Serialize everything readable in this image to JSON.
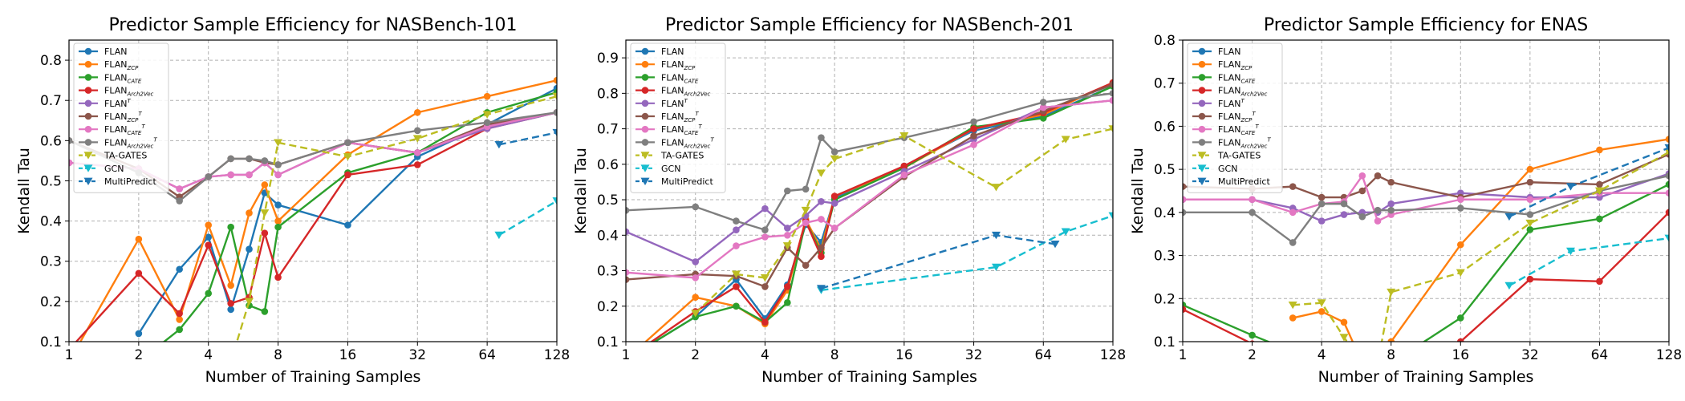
{
  "colors": {
    "FLAN": "#1f77b4",
    "FLAN_ZCP": "#ff7f0e",
    "FLAN_CATE": "#2ca02c",
    "FLAN_Arch2Vec": "#d62728",
    "FLAN_T": "#9467bd",
    "FLAN_ZCP_T": "#8c564b",
    "FLAN_CATE_T": "#e377c2",
    "FLAN_Arch2Vec_T": "#7f7f7f",
    "TA-GATES": "#bcbd22",
    "GCN": "#17becf",
    "MultiPredict": "#1f77b4"
  },
  "legend": [
    {
      "key": "FLAN",
      "base": "FLAN",
      "sub": "",
      "sup": "",
      "marker": "circle",
      "dash": false
    },
    {
      "key": "FLAN_ZCP",
      "base": "FLAN",
      "sub": "ZCP",
      "sup": "",
      "marker": "circle",
      "dash": false
    },
    {
      "key": "FLAN_CATE",
      "base": "FLAN",
      "sub": "CATE",
      "sup": "",
      "marker": "circle",
      "dash": false
    },
    {
      "key": "FLAN_Arch2Vec",
      "base": "FLAN",
      "sub": "Arch2Vec",
      "sup": "",
      "marker": "circle",
      "dash": false
    },
    {
      "key": "FLAN_T",
      "base": "FLAN",
      "sub": "",
      "sup": "T",
      "marker": "circle",
      "dash": false
    },
    {
      "key": "FLAN_ZCP_T",
      "base": "FLAN",
      "sub": "ZCP",
      "sup": "T",
      "marker": "circle",
      "dash": false
    },
    {
      "key": "FLAN_CATE_T",
      "base": "FLAN",
      "sub": "CATE",
      "sup": "T",
      "marker": "circle",
      "dash": false
    },
    {
      "key": "FLAN_Arch2Vec_T",
      "base": "FLAN",
      "sub": "Arch2Vec",
      "sup": "T",
      "marker": "circle",
      "dash": false
    },
    {
      "key": "TA-GATES",
      "base": "TA-GATES",
      "sub": "",
      "sup": "",
      "marker": "triangle-down",
      "dash": true
    },
    {
      "key": "GCN",
      "base": "GCN",
      "sub": "",
      "sup": "",
      "marker": "triangle-down",
      "dash": true
    },
    {
      "key": "MultiPredict",
      "base": "MultiPredict",
      "sub": "",
      "sup": "",
      "marker": "triangle-down",
      "dash": true
    }
  ],
  "chart_data": [
    {
      "type": "line",
      "title": "Predictor Sample Efficiency for NASBench-101",
      "xlabel": "Number of Training Samples",
      "ylabel": "Kendall Tau",
      "xscale": "log2",
      "xlim": [
        1,
        128
      ],
      "ylim": [
        0.1,
        0.85
      ],
      "xticks": [
        1,
        2,
        4,
        8,
        16,
        32,
        64,
        128
      ],
      "yticks": [
        0.1,
        0.2,
        0.3,
        0.4,
        0.5,
        0.6,
        0.7,
        0.8
      ],
      "grid": true,
      "legend_position": "upper-left",
      "series": [
        {
          "key": "FLAN",
          "x": [
            2,
            3,
            4,
            5,
            6,
            7,
            8,
            16,
            32,
            64,
            128
          ],
          "y": [
            0.12,
            0.28,
            0.36,
            0.18,
            0.33,
            0.47,
            0.44,
            0.39,
            0.56,
            0.64,
            0.73
          ]
        },
        {
          "key": "FLAN_ZCP",
          "x": [
            1,
            2,
            3,
            4,
            5,
            6,
            7,
            8,
            16,
            32,
            64,
            128
          ],
          "y": [
            0.05,
            0.355,
            0.155,
            0.39,
            0.24,
            0.42,
            0.49,
            0.4,
            0.565,
            0.67,
            0.71,
            0.75
          ]
        },
        {
          "key": "FLAN_CATE",
          "x": [
            2,
            3,
            4,
            5,
            6,
            7,
            8,
            16,
            32,
            64,
            128
          ],
          "y": [
            0.05,
            0.13,
            0.22,
            0.385,
            0.19,
            0.175,
            0.385,
            0.52,
            0.57,
            0.67,
            0.72
          ]
        },
        {
          "key": "FLAN_Arch2Vec",
          "x": [
            1,
            2,
            3,
            4,
            5,
            6,
            7,
            8,
            16,
            32,
            64,
            128
          ],
          "y": [
            0.08,
            0.27,
            0.17,
            0.34,
            0.195,
            0.21,
            0.37,
            0.26,
            0.515,
            0.54,
            0.63,
            0.67
          ]
        },
        {
          "key": "FLAN_T",
          "x": [
            1,
            2,
            3,
            4,
            5,
            6,
            7,
            8,
            16,
            32,
            64,
            128
          ],
          "y": [
            0.545,
            0.53,
            0.48,
            0.51,
            0.515,
            0.515,
            0.545,
            0.515,
            0.595,
            0.57,
            0.63,
            0.67
          ]
        },
        {
          "key": "FLAN_ZCP_T",
          "x": [
            1,
            2,
            3,
            4,
            5,
            6,
            7,
            8,
            16,
            32,
            64,
            128
          ],
          "y": [
            0.6,
            0.53,
            0.46,
            0.51,
            0.555,
            0.555,
            0.545,
            0.54,
            0.595,
            0.57,
            0.64,
            0.67
          ]
        },
        {
          "key": "FLAN_CATE_T",
          "x": [
            1,
            2,
            3,
            4,
            5,
            6,
            7,
            8,
            16,
            32,
            64,
            128
          ],
          "y": [
            0.545,
            0.53,
            0.48,
            0.51,
            0.515,
            0.515,
            0.545,
            0.515,
            0.595,
            0.57,
            0.635,
            0.67
          ]
        },
        {
          "key": "FLAN_Arch2Vec_T",
          "x": [
            1,
            2,
            3,
            4,
            5,
            6,
            7,
            8,
            16,
            32,
            64,
            128
          ],
          "y": [
            0.6,
            0.52,
            0.45,
            0.51,
            0.555,
            0.555,
            0.55,
            0.54,
            0.595,
            0.625,
            0.645,
            0.67
          ]
        },
        {
          "key": "TA-GATES",
          "x": [
            5,
            6,
            7,
            8,
            16,
            32,
            64,
            128
          ],
          "y": [
            0.05,
            0.2,
            0.42,
            0.595,
            0.56,
            0.605,
            0.665,
            0.71
          ]
        },
        {
          "key": "GCN",
          "x": [
            72,
            128
          ],
          "y": [
            0.365,
            0.45
          ]
        },
        {
          "key": "MultiPredict",
          "x": [
            72,
            128
          ],
          "y": [
            0.59,
            0.62
          ]
        }
      ]
    },
    {
      "type": "line",
      "title": "Predictor Sample Efficiency for NASBench-201",
      "xlabel": "Number of Training Samples",
      "ylabel": "Kendall Tau",
      "xscale": "log2",
      "xlim": [
        1,
        128
      ],
      "ylim": [
        0.1,
        0.95
      ],
      "xticks": [
        1,
        2,
        4,
        8,
        16,
        32,
        64,
        128
      ],
      "yticks": [
        0.1,
        0.2,
        0.3,
        0.4,
        0.5,
        0.6,
        0.7,
        0.8,
        0.9
      ],
      "grid": true,
      "legend_position": "upper-left",
      "series": [
        {
          "key": "FLAN",
          "x": [
            1,
            2,
            3,
            4,
            5,
            6,
            7,
            8,
            16,
            32,
            64,
            128
          ],
          "y": [
            0.05,
            0.17,
            0.275,
            0.165,
            0.26,
            0.43,
            0.38,
            0.505,
            0.595,
            0.695,
            0.735,
            0.82
          ]
        },
        {
          "key": "FLAN_ZCP",
          "x": [
            1,
            2,
            3,
            4,
            5,
            6,
            7,
            8,
            16,
            32,
            64,
            128
          ],
          "y": [
            0.05,
            0.225,
            0.2,
            0.15,
            0.245,
            0.445,
            0.36,
            0.51,
            0.59,
            0.7,
            0.74,
            0.83
          ]
        },
        {
          "key": "FLAN_CATE",
          "x": [
            1,
            2,
            3,
            4,
            5,
            6,
            7,
            8,
            16,
            32,
            64,
            128
          ],
          "y": [
            0.05,
            0.17,
            0.2,
            0.155,
            0.21,
            0.44,
            0.35,
            0.5,
            0.59,
            0.705,
            0.73,
            0.82
          ]
        },
        {
          "key": "FLAN_Arch2Vec",
          "x": [
            1,
            2,
            3,
            4,
            5,
            6,
            7,
            8,
            16,
            32,
            64,
            128
          ],
          "y": [
            0.05,
            0.185,
            0.255,
            0.155,
            0.255,
            0.44,
            0.34,
            0.51,
            0.595,
            0.7,
            0.745,
            0.83
          ]
        },
        {
          "key": "FLAN_T",
          "x": [
            1,
            2,
            3,
            4,
            5,
            6,
            7,
            8,
            16,
            32,
            64,
            128
          ],
          "y": [
            0.41,
            0.325,
            0.415,
            0.475,
            0.42,
            0.455,
            0.495,
            0.49,
            0.58,
            0.67,
            0.76,
            0.78
          ]
        },
        {
          "key": "FLAN_ZCP_T",
          "x": [
            1,
            2,
            3,
            4,
            5,
            6,
            7,
            8,
            16,
            32,
            64,
            128
          ],
          "y": [
            0.275,
            0.29,
            0.285,
            0.255,
            0.365,
            0.315,
            0.365,
            0.42,
            0.565,
            0.68,
            0.75,
            0.825
          ]
        },
        {
          "key": "FLAN_CATE_T",
          "x": [
            1,
            2,
            3,
            4,
            5,
            6,
            7,
            8,
            16,
            32,
            64,
            128
          ],
          "y": [
            0.295,
            0.28,
            0.37,
            0.395,
            0.4,
            0.435,
            0.445,
            0.42,
            0.57,
            0.655,
            0.76,
            0.78
          ]
        },
        {
          "key": "FLAN_Arch2Vec_T",
          "x": [
            1,
            2,
            3,
            4,
            5,
            6,
            7,
            8,
            16,
            32,
            64,
            128
          ],
          "y": [
            0.47,
            0.48,
            0.44,
            0.415,
            0.525,
            0.53,
            0.675,
            0.635,
            0.675,
            0.72,
            0.775,
            0.8
          ]
        },
        {
          "key": "TA-GATES",
          "x": [
            2,
            3,
            4,
            5,
            6,
            7,
            8,
            16,
            40,
            80,
            128
          ],
          "y": [
            0.18,
            0.29,
            0.28,
            0.37,
            0.47,
            0.575,
            0.615,
            0.68,
            0.535,
            0.67,
            0.7
          ]
        },
        {
          "key": "GCN",
          "x": [
            7,
            40,
            80,
            128
          ],
          "y": [
            0.245,
            0.31,
            0.41,
            0.455
          ]
        },
        {
          "key": "MultiPredict",
          "x": [
            7,
            40,
            72
          ],
          "y": [
            0.25,
            0.4,
            0.375
          ]
        }
      ]
    },
    {
      "type": "line",
      "title": "Predictor Sample Efficiency for ENAS",
      "xlabel": "Number of Training Samples",
      "ylabel": "Kendall Tau",
      "xscale": "log2",
      "xlim": [
        1,
        128
      ],
      "ylim": [
        0.1,
        0.8
      ],
      "xticks": [
        1,
        2,
        4,
        8,
        16,
        32,
        64,
        128
      ],
      "yticks": [
        0.1,
        0.2,
        0.3,
        0.4,
        0.5,
        0.6,
        0.7,
        0.8
      ],
      "grid": true,
      "legend_position": "upper-left",
      "series": [
        {
          "key": "FLAN",
          "x": [
            1,
            2,
            4,
            8,
            16,
            32,
            64,
            128
          ],
          "y": [
            0.05,
            0.05,
            0.05,
            0.05,
            0.05,
            0.05,
            0.05,
            0.05
          ]
        },
        {
          "key": "FLAN_ZCP",
          "x": [
            3,
            4,
            5,
            6,
            7,
            8,
            16,
            32,
            64,
            128
          ],
          "y": [
            0.155,
            0.17,
            0.145,
            0.05,
            0.05,
            0.1,
            0.325,
            0.5,
            0.545,
            0.57
          ]
        },
        {
          "key": "FLAN_CATE",
          "x": [
            1,
            2,
            4,
            8,
            16,
            32,
            64,
            128
          ],
          "y": [
            0.185,
            0.115,
            0.05,
            0.05,
            0.155,
            0.36,
            0.385,
            0.465
          ]
        },
        {
          "key": "FLAN_Arch2Vec",
          "x": [
            1,
            2,
            4,
            8,
            16,
            32,
            64,
            128
          ],
          "y": [
            0.175,
            0.095,
            0.05,
            0.05,
            0.1,
            0.245,
            0.24,
            0.4
          ]
        },
        {
          "key": "FLAN_T",
          "x": [
            1,
            2,
            3,
            4,
            5,
            6,
            7,
            8,
            16,
            32,
            64,
            128
          ],
          "y": [
            0.43,
            0.43,
            0.41,
            0.38,
            0.395,
            0.4,
            0.4,
            0.42,
            0.445,
            0.435,
            0.435,
            0.49
          ]
        },
        {
          "key": "FLAN_ZCP_T",
          "x": [
            1,
            2,
            3,
            4,
            5,
            6,
            7,
            8,
            16,
            32,
            64,
            128
          ],
          "y": [
            0.46,
            0.455,
            0.46,
            0.435,
            0.435,
            0.45,
            0.485,
            0.47,
            0.435,
            0.47,
            0.465,
            0.535
          ]
        },
        {
          "key": "FLAN_CATE_T",
          "x": [
            1,
            2,
            3,
            4,
            5,
            6,
            7,
            8,
            16,
            32,
            64,
            128
          ],
          "y": [
            0.43,
            0.43,
            0.4,
            0.42,
            0.425,
            0.485,
            0.38,
            0.395,
            0.43,
            0.43,
            0.445,
            0.445
          ]
        },
        {
          "key": "FLAN_Arch2Vec_T",
          "x": [
            1,
            2,
            3,
            4,
            5,
            6,
            7,
            8,
            16,
            32,
            64,
            128
          ],
          "y": [
            0.4,
            0.4,
            0.33,
            0.42,
            0.42,
            0.39,
            0.405,
            0.405,
            0.41,
            0.395,
            0.45,
            0.485
          ]
        },
        {
          "key": "TA-GATES",
          "x": [
            3,
            4,
            5,
            6,
            7,
            8,
            16,
            32,
            64,
            128
          ],
          "y": [
            0.185,
            0.19,
            0.11,
            0.05,
            0.05,
            0.215,
            0.26,
            0.375,
            0.45,
            0.54
          ]
        },
        {
          "key": "GCN",
          "x": [
            26,
            48,
            128
          ],
          "y": [
            0.23,
            0.31,
            0.34
          ]
        },
        {
          "key": "MultiPredict",
          "x": [
            26,
            48,
            128
          ],
          "y": [
            0.39,
            0.46,
            0.55
          ]
        }
      ]
    }
  ]
}
